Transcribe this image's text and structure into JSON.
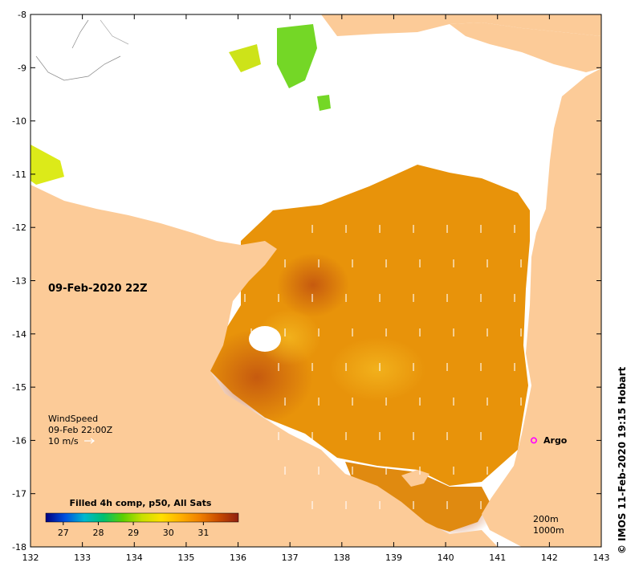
{
  "map": {
    "title": "09-Feb-2020 22Z",
    "credit": "© IMOS 11-Feb-2020 19:15 Hobart",
    "x_ticks": [
      "132",
      "133",
      "134",
      "135",
      "136",
      "137",
      "138",
      "139",
      "140",
      "141",
      "142",
      "143"
    ],
    "y_ticks": [
      "-8",
      "-9",
      "-10",
      "-11",
      "-12",
      "-13",
      "-14",
      "-15",
      "-16",
      "-17",
      "-18"
    ],
    "x_range": [
      132,
      143
    ],
    "y_range": [
      -18,
      -8
    ]
  },
  "wind_legend": {
    "line1": "WindSpeed",
    "line2": "09-Feb 22:00Z",
    "line3": "10 m/s"
  },
  "argo": {
    "label": "Argo",
    "lon": 141.7,
    "lat": -16.0,
    "color": "#ff00ff"
  },
  "depth_contours": {
    "label1": "200m",
    "label2": "1000m"
  },
  "colorbar": {
    "title": "Filled 4h comp, p50, All Sats",
    "ticks": [
      "27",
      "28",
      "29",
      "30",
      "31"
    ],
    "range": [
      26.5,
      32
    ],
    "stops": [
      "#000080",
      "#0050e0",
      "#00b8d0",
      "#00c070",
      "#5cd000",
      "#c8e000",
      "#ffe000",
      "#ffb000",
      "#f08000",
      "#c84a00",
      "#902010"
    ]
  },
  "colors": {
    "land": "#fccb98",
    "no_data": "#ffffff",
    "sst_dominant": "#e8930a"
  }
}
